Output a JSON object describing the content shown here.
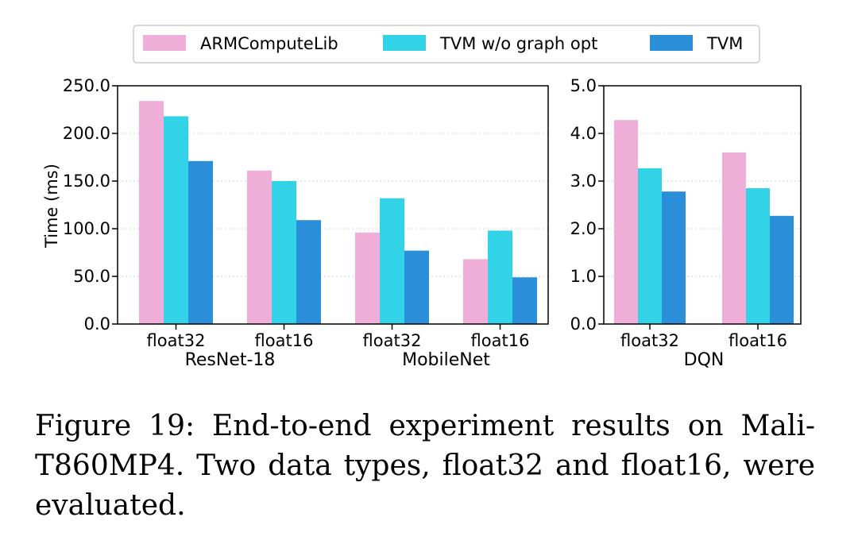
{
  "colors": {
    "ARMComputeLib": "#efaed8",
    "TVM w/o graph opt": "#32d3e6",
    "TVM": "#2a8ed8",
    "grid": "#d0d0d0"
  },
  "legend": [
    "ARMComputeLib",
    "TVM w/o graph opt",
    "TVM"
  ],
  "chart_data": [
    {
      "type": "bar",
      "ylabel": "Time (ms)",
      "ylim": [
        0,
        250
      ],
      "yticks": [
        "0.0",
        "50.0",
        "100.0",
        "150.0",
        "200.0",
        "250.0"
      ],
      "grid": "horizontal dotted",
      "groups": [
        "ResNet-18",
        "MobileNet"
      ],
      "categories": [
        "float32",
        "float16",
        "float32",
        "float16"
      ],
      "series": [
        {
          "name": "ARMComputeLib",
          "values": [
            234,
            161,
            96,
            68
          ]
        },
        {
          "name": "TVM w/o graph opt",
          "values": [
            218,
            150,
            132,
            98
          ]
        },
        {
          "name": "TVM",
          "values": [
            171,
            109,
            77,
            49
          ]
        }
      ]
    },
    {
      "type": "bar",
      "ylabel": "",
      "ylim": [
        0,
        5
      ],
      "yticks": [
        "0.0",
        "1.0",
        "2.0",
        "3.0",
        "4.0",
        "5.0"
      ],
      "grid": "horizontal dotted",
      "groups": [
        "DQN"
      ],
      "categories": [
        "float32",
        "float16"
      ],
      "series": [
        {
          "name": "ARMComputeLib",
          "values": [
            4.28,
            3.6
          ]
        },
        {
          "name": "TVM w/o graph opt",
          "values": [
            3.27,
            2.85
          ]
        },
        {
          "name": "TVM",
          "values": [
            2.78,
            2.27
          ]
        }
      ]
    }
  ],
  "caption": {
    "line1": "Figure 19:  End-to-end experiment results on Mali-",
    "line2": "T860MP4.  Two data types, float32 and float16, were",
    "line3": "evaluated."
  }
}
